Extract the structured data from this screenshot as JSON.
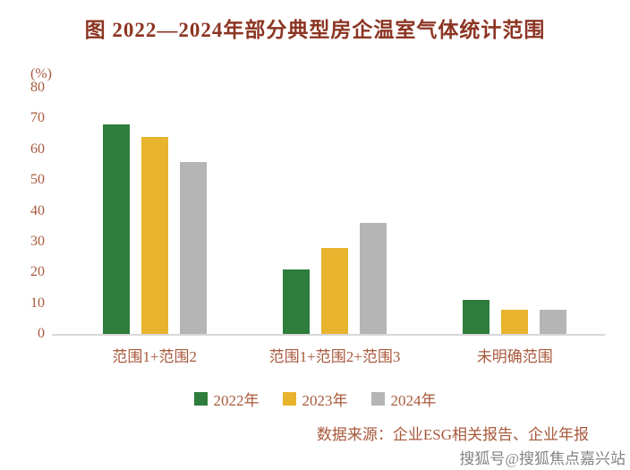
{
  "title": "图  2022—2024年部分典型房企温室气体统计范围",
  "chart_data": {
    "type": "bar",
    "title": "图 2022—2024年部分典型房企温室气体统计范围",
    "unit_label": "(%)",
    "categories": [
      "范围1+范围2",
      "范围1+范围2+范围3",
      "未明确范围"
    ],
    "series": [
      {
        "name": "2022年",
        "color": "#2e7d3c",
        "values": [
          68,
          21,
          11
        ]
      },
      {
        "name": "2023年",
        "color": "#e8b42e",
        "values": [
          64,
          28,
          8
        ]
      },
      {
        "name": "2024年",
        "color": "#b5b5b5",
        "values": [
          56,
          36,
          8
        ]
      }
    ],
    "ylim": [
      0,
      80
    ],
    "yticks": [
      0,
      10,
      20,
      30,
      40,
      50,
      60,
      70,
      80
    ],
    "grid": false,
    "legend_position": "bottom"
  },
  "source": "数据来源：企业ESG相关报告、企业年报",
  "watermark": "搜狐号@搜狐焦点嘉兴站",
  "colors": {
    "title_text": "#8c3523",
    "axis_text": "#a8593c",
    "baseline": "#d8d8d8"
  }
}
